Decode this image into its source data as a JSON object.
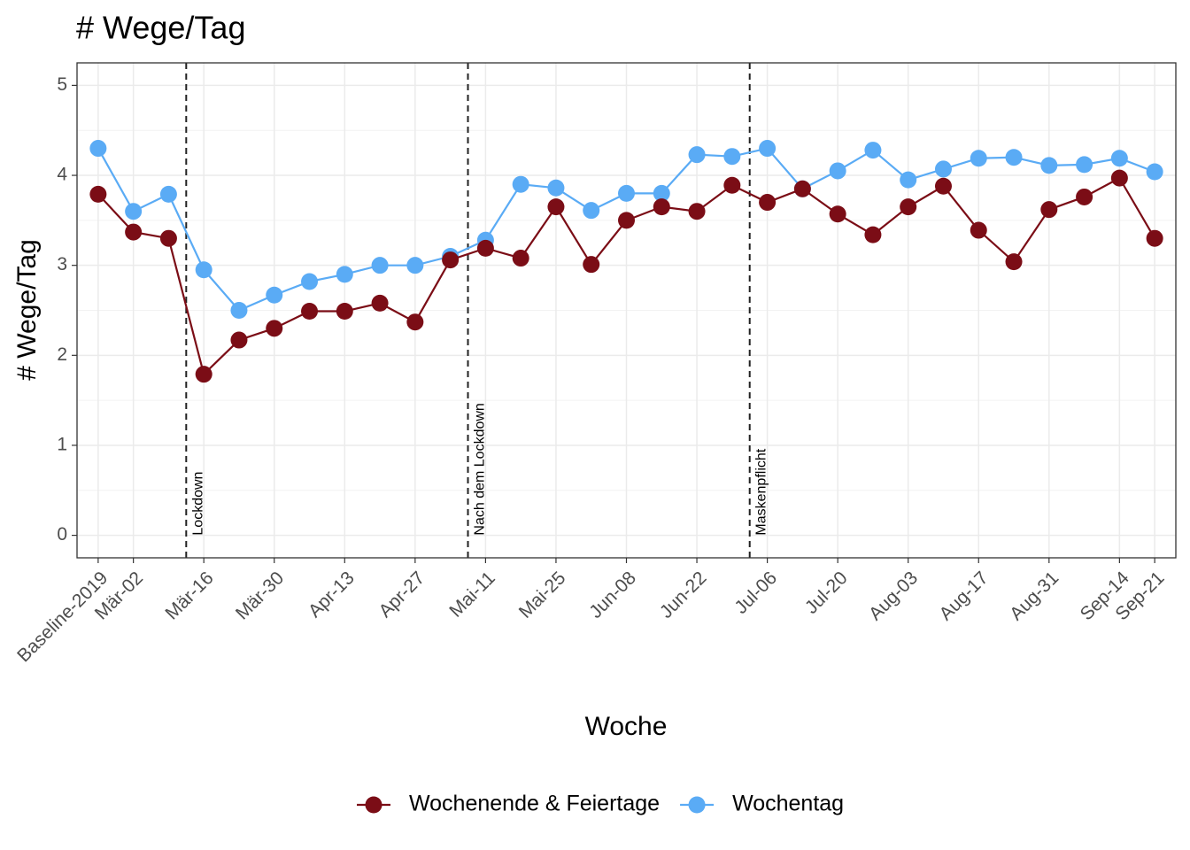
{
  "chart_data": {
    "type": "line",
    "title": "# Wege/Tag",
    "x_label": "Woche",
    "y_label": "# Wege/Tag",
    "categories": [
      "Baseline-2019",
      "Mär-02",
      null,
      "Mär-16",
      null,
      "Mär-30",
      null,
      "Apr-13",
      null,
      "Apr-27",
      null,
      "Mai-11",
      null,
      "Mai-25",
      null,
      "Jun-08",
      null,
      "Jun-22",
      null,
      "Jul-06",
      null,
      "Jul-20",
      null,
      "Aug-03",
      null,
      "Aug-17",
      null,
      "Aug-31",
      null,
      "Sep-14",
      "Sep-21"
    ],
    "series": [
      {
        "name": "Wochenende & Feiertage",
        "color": "#7b0d16",
        "values": [
          3.79,
          3.37,
          3.3,
          1.79,
          2.17,
          2.3,
          2.49,
          2.49,
          2.58,
          2.37,
          3.06,
          3.19,
          3.08,
          3.65,
          3.01,
          3.5,
          3.65,
          3.6,
          3.89,
          3.7,
          3.85,
          3.57,
          3.34,
          3.65,
          3.88,
          3.39,
          3.04,
          3.62,
          3.76,
          3.97,
          3.3
        ]
      },
      {
        "name": "Wochentag",
        "color": "#5aabf5",
        "values": [
          4.3,
          3.6,
          3.79,
          2.95,
          2.5,
          2.67,
          2.82,
          2.9,
          3.0,
          3.0,
          3.1,
          3.28,
          3.9,
          3.86,
          3.61,
          3.8,
          3.8,
          4.23,
          4.21,
          4.3,
          3.85,
          4.05,
          4.28,
          3.95,
          4.07,
          4.19,
          4.2,
          4.11,
          4.12,
          4.19,
          4.04
        ]
      }
    ],
    "vlines": [
      {
        "x": 2.5,
        "label": "Lockdown"
      },
      {
        "x": 10.5,
        "label": "Nach dem Lockdown"
      },
      {
        "x": 18.5,
        "label": "Maskenpflicht"
      }
    ],
    "ylim": [
      -0.25,
      5.25
    ],
    "yticks": [
      0,
      1,
      2,
      3,
      4,
      5
    ],
    "grid": true,
    "legend": "bottom"
  }
}
